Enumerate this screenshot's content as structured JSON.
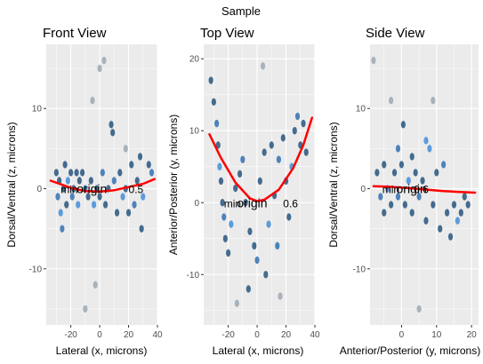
{
  "suptitle": "Sample",
  "colors": {
    "panel_bg": "#ebebeb",
    "grid": "#ffffff",
    "fit_line": "#ff0000",
    "tick_text": "#4d4d4d"
  },
  "chart_data": [
    {
      "type": "scatter",
      "title": "Front View",
      "xlabel": "Lateral (x, microns)",
      "ylabel": "Dorsal/Ventral (z, microns)",
      "xlim": [
        -37,
        40
      ],
      "ylim": [
        -17,
        18
      ],
      "xticks": [
        -20,
        0,
        20,
        40
      ],
      "yticks": [
        -10,
        0,
        10
      ],
      "annotations": [
        {
          "text": "min",
          "x": -27,
          "y": 0,
          "size": "small"
        },
        {
          "text": "origin",
          "x": -16,
          "y": 0,
          "size": "big"
        },
        {
          "text": "0.5",
          "x": 20,
          "y": 0,
          "size": "small"
        }
      ],
      "fit": {
        "x": [
          -34,
          -20,
          -10,
          0,
          10,
          20,
          30,
          38
        ],
        "y": [
          1.0,
          0.1,
          -0.3,
          -0.35,
          -0.2,
          0.2,
          0.6,
          1.2
        ]
      },
      "points": [
        {
          "x": -30,
          "y": 2,
          "c": "#1f4e79"
        },
        {
          "x": -29,
          "y": -1,
          "c": "#2a6bb0"
        },
        {
          "x": -28,
          "y": 1,
          "c": "#1f4e79"
        },
        {
          "x": -27,
          "y": -3,
          "c": "#3a8ad6"
        },
        {
          "x": -26,
          "y": -5,
          "c": "#2a6bb0"
        },
        {
          "x": -25,
          "y": 0,
          "c": "#1f4e79"
        },
        {
          "x": -24,
          "y": 3,
          "c": "#1f4e79"
        },
        {
          "x": -23,
          "y": -2,
          "c": "#1f4e79"
        },
        {
          "x": -22,
          "y": 1,
          "c": "#3a8ad6"
        },
        {
          "x": -20,
          "y": 2,
          "c": "#1f4e79"
        },
        {
          "x": -19,
          "y": -1,
          "c": "#2a6bb0"
        },
        {
          "x": -18,
          "y": 0,
          "c": "#1f4e79"
        },
        {
          "x": -16,
          "y": 2,
          "c": "#1f4e79"
        },
        {
          "x": -15,
          "y": -2,
          "c": "#3a8ad6"
        },
        {
          "x": -14,
          "y": 1,
          "c": "#1f4e79"
        },
        {
          "x": -12,
          "y": 2,
          "c": "#1f4e79"
        },
        {
          "x": -10,
          "y": 0,
          "c": "#2a6bb0"
        },
        {
          "x": -8,
          "y": -1,
          "c": "#1f4e79"
        },
        {
          "x": -6,
          "y": 1,
          "c": "#1f4e79"
        },
        {
          "x": -4,
          "y": -2,
          "c": "#3a8ad6"
        },
        {
          "x": -2,
          "y": 0,
          "c": "#1f4e79"
        },
        {
          "x": 0,
          "y": -1,
          "c": "#1f4e79"
        },
        {
          "x": 2,
          "y": 2,
          "c": "#2a6bb0"
        },
        {
          "x": 4,
          "y": -2,
          "c": "#1f4e79"
        },
        {
          "x": 6,
          "y": 0,
          "c": "#1f4e79"
        },
        {
          "x": 8,
          "y": 8,
          "c": "#1f4e79"
        },
        {
          "x": 9,
          "y": 7,
          "c": "#1f4e79"
        },
        {
          "x": 10,
          "y": 1,
          "c": "#2a6bb0"
        },
        {
          "x": 12,
          "y": -3,
          "c": "#1f4e79"
        },
        {
          "x": 14,
          "y": 2,
          "c": "#1f4e79"
        },
        {
          "x": 16,
          "y": -1,
          "c": "#3a8ad6"
        },
        {
          "x": 18,
          "y": 0,
          "c": "#1f4e79"
        },
        {
          "x": 20,
          "y": -3,
          "c": "#1f4e79"
        },
        {
          "x": 22,
          "y": 3,
          "c": "#1f4e79"
        },
        {
          "x": 24,
          "y": -2,
          "c": "#2a6bb0"
        },
        {
          "x": 26,
          "y": 1,
          "c": "#1f4e79"
        },
        {
          "x": 28,
          "y": 4,
          "c": "#1f4e79"
        },
        {
          "x": 29,
          "y": -5,
          "c": "#1f4e79"
        },
        {
          "x": 30,
          "y": -1,
          "c": "#3a8ad6"
        },
        {
          "x": 34,
          "y": 3,
          "c": "#1f4e79"
        },
        {
          "x": 36,
          "y": 2,
          "c": "#2a6bb0"
        },
        {
          "x": -5,
          "y": 11,
          "c": "#9aa5b0"
        },
        {
          "x": 0,
          "y": 15,
          "c": "#9aa5b0"
        },
        {
          "x": 3,
          "y": 16,
          "c": "#9aa5b0"
        },
        {
          "x": -10,
          "y": -15,
          "c": "#9aa5b0"
        },
        {
          "x": 18,
          "y": 5,
          "c": "#9aa5b0"
        },
        {
          "x": -3,
          "y": -12,
          "c": "#9aa5b0"
        }
      ]
    },
    {
      "type": "scatter",
      "title": "Top View",
      "xlabel": "Lateral (x, microns)",
      "ylabel": "Anterior/Posterior (y, microns)",
      "xlim": [
        -37,
        40
      ],
      "ylim": [
        -17,
        22
      ],
      "xticks": [
        -20,
        0,
        20,
        40
      ],
      "yticks": [
        -10,
        0,
        10,
        20
      ],
      "annotations": [
        {
          "text": "min",
          "x": -23,
          "y": 0,
          "size": "small"
        },
        {
          "text": "origin",
          "x": -14,
          "y": 0,
          "size": "big"
        },
        {
          "text": "0.6",
          "x": 18,
          "y": 0,
          "size": "small"
        }
      ],
      "fit": {
        "x": [
          -33,
          -25,
          -15,
          -5,
          0,
          5,
          15,
          25,
          32,
          38
        ],
        "y": [
          9.5,
          6.2,
          2.8,
          0.6,
          0.2,
          0.4,
          1.8,
          4.8,
          8.0,
          11.8
        ]
      },
      "points": [
        {
          "x": -30,
          "y": 14,
          "c": "#1f4e79"
        },
        {
          "x": -28,
          "y": 11,
          "c": "#2a6bb0"
        },
        {
          "x": -27,
          "y": 8,
          "c": "#1f4e79"
        },
        {
          "x": -26,
          "y": 5,
          "c": "#3a8ad6"
        },
        {
          "x": -25,
          "y": 3,
          "c": "#1f4e79"
        },
        {
          "x": -24,
          "y": 0,
          "c": "#1f4e79"
        },
        {
          "x": -23,
          "y": -2,
          "c": "#2a6bb0"
        },
        {
          "x": -22,
          "y": -5,
          "c": "#1f4e79"
        },
        {
          "x": -20,
          "y": -7,
          "c": "#1f4e79"
        },
        {
          "x": -18,
          "y": -3,
          "c": "#3a8ad6"
        },
        {
          "x": -15,
          "y": 2,
          "c": "#1f4e79"
        },
        {
          "x": -12,
          "y": 4,
          "c": "#1f4e79"
        },
        {
          "x": -10,
          "y": 6,
          "c": "#2a6bb0"
        },
        {
          "x": -8,
          "y": 0,
          "c": "#1f4e79"
        },
        {
          "x": -5,
          "y": -4,
          "c": "#1f4e79"
        },
        {
          "x": -2,
          "y": -6,
          "c": "#1f4e79"
        },
        {
          "x": 0,
          "y": -8,
          "c": "#2a6bb0"
        },
        {
          "x": 2,
          "y": 3,
          "c": "#1f4e79"
        },
        {
          "x": 5,
          "y": 7,
          "c": "#1f4e79"
        },
        {
          "x": 8,
          "y": -3,
          "c": "#3a8ad6"
        },
        {
          "x": 10,
          "y": 8,
          "c": "#1f4e79"
        },
        {
          "x": 12,
          "y": 1,
          "c": "#1f4e79"
        },
        {
          "x": 15,
          "y": 6,
          "c": "#2a6bb0"
        },
        {
          "x": 18,
          "y": 9,
          "c": "#1f4e79"
        },
        {
          "x": 20,
          "y": 3,
          "c": "#1f4e79"
        },
        {
          "x": 22,
          "y": -2,
          "c": "#1f4e79"
        },
        {
          "x": 24,
          "y": 5,
          "c": "#3a8ad6"
        },
        {
          "x": 26,
          "y": 10,
          "c": "#1f4e79"
        },
        {
          "x": 28,
          "y": 12,
          "c": "#2a6bb0"
        },
        {
          "x": 30,
          "y": 8,
          "c": "#1f4e79"
        },
        {
          "x": 32,
          "y": 11,
          "c": "#1f4e79"
        },
        {
          "x": 34,
          "y": 7,
          "c": "#1f4e79"
        },
        {
          "x": -6,
          "y": -12,
          "c": "#1f4e79"
        },
        {
          "x": 6,
          "y": -10,
          "c": "#1f4e79"
        },
        {
          "x": 14,
          "y": -6,
          "c": "#2a6bb0"
        },
        {
          "x": -32,
          "y": 17,
          "c": "#1f4e79"
        },
        {
          "x": 4,
          "y": 19,
          "c": "#9aa5b0"
        },
        {
          "x": -14,
          "y": -14,
          "c": "#9aa5b0"
        },
        {
          "x": 16,
          "y": -13,
          "c": "#9aa5b0"
        }
      ]
    },
    {
      "type": "scatter",
      "title": "Side View",
      "xlabel": "Anterior/Posterior (y, microns)",
      "ylabel": "Dorsal/Ventral (z, microns)",
      "xlim": [
        -9,
        22
      ],
      "ylim": [
        -17,
        18
      ],
      "xticks": [
        0,
        10,
        20
      ],
      "yticks": [
        -10,
        0,
        10
      ],
      "annotations": [
        {
          "text": "min",
          "x": -5.5,
          "y": 0,
          "size": "small"
        },
        {
          "text": "origin",
          "x": -1.5,
          "y": 0,
          "size": "big"
        },
        {
          "text": "0.6",
          "x": 3.5,
          "y": 0,
          "size": "small"
        }
      ],
      "fit": {
        "x": [
          -8,
          -4,
          0,
          4,
          8,
          12,
          16,
          21
        ],
        "y": [
          0.3,
          0.25,
          0.15,
          0.0,
          -0.15,
          -0.3,
          -0.4,
          -0.5
        ]
      },
      "points": [
        {
          "x": -7,
          "y": 2,
          "c": "#1f4e79"
        },
        {
          "x": -6,
          "y": -1,
          "c": "#2a6bb0"
        },
        {
          "x": -5,
          "y": 3,
          "c": "#1f4e79"
        },
        {
          "x": -4,
          "y": 0,
          "c": "#3a8ad6"
        },
        {
          "x": -3,
          "y": -2,
          "c": "#1f4e79"
        },
        {
          "x": -2,
          "y": 2,
          "c": "#1f4e79"
        },
        {
          "x": -1,
          "y": -1,
          "c": "#2a6bb0"
        },
        {
          "x": 0,
          "y": 3,
          "c": "#1f4e79"
        },
        {
          "x": 0.5,
          "y": 8,
          "c": "#1f4e79"
        },
        {
          "x": 1,
          "y": -2,
          "c": "#1f4e79"
        },
        {
          "x": 2,
          "y": 1,
          "c": "#3a8ad6"
        },
        {
          "x": 3,
          "y": -3,
          "c": "#1f4e79"
        },
        {
          "x": 4,
          "y": 2,
          "c": "#1f4e79"
        },
        {
          "x": 5,
          "y": -1,
          "c": "#2a6bb0"
        },
        {
          "x": 6,
          "y": 1,
          "c": "#1f4e79"
        },
        {
          "x": 7,
          "y": -4,
          "c": "#1f4e79"
        },
        {
          "x": 8,
          "y": 5,
          "c": "#3a8ad6"
        },
        {
          "x": 9,
          "y": -2,
          "c": "#1f4e79"
        },
        {
          "x": 10,
          "y": 2,
          "c": "#1f4e79"
        },
        {
          "x": 11,
          "y": -5,
          "c": "#1f4e79"
        },
        {
          "x": 12,
          "y": 3,
          "c": "#2a6bb0"
        },
        {
          "x": 13,
          "y": -3,
          "c": "#1f4e79"
        },
        {
          "x": 14,
          "y": -6,
          "c": "#1f4e79"
        },
        {
          "x": 15,
          "y": -2,
          "c": "#1f4e79"
        },
        {
          "x": 16,
          "y": -4,
          "c": "#3a8ad6"
        },
        {
          "x": 17,
          "y": -3,
          "c": "#1f4e79"
        },
        {
          "x": 18,
          "y": -1,
          "c": "#1f4e79"
        },
        {
          "x": 19,
          "y": -2,
          "c": "#1f4e79"
        },
        {
          "x": -1,
          "y": 5,
          "c": "#2a6bb0"
        },
        {
          "x": 3,
          "y": 4,
          "c": "#1f4e79"
        },
        {
          "x": 7,
          "y": 6,
          "c": "#3a8ad6"
        },
        {
          "x": -5,
          "y": -3,
          "c": "#1f4e79"
        },
        {
          "x": -8,
          "y": 16,
          "c": "#9aa5b0"
        },
        {
          "x": 5,
          "y": -15,
          "c": "#9aa5b0"
        },
        {
          "x": -3,
          "y": 11,
          "c": "#9aa5b0"
        },
        {
          "x": 9,
          "y": 11,
          "c": "#9aa5b0"
        }
      ]
    }
  ]
}
